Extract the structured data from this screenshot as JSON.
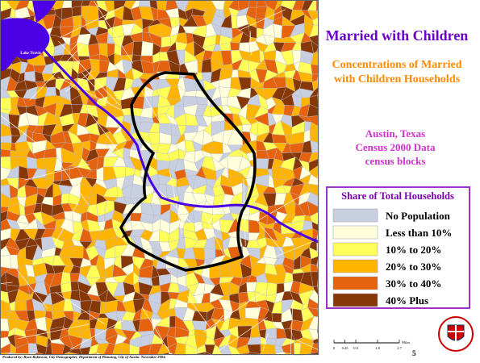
{
  "header": {
    "title": "Married with Children",
    "subtitle": [
      "Concentrations of Married",
      "with Children Households"
    ]
  },
  "place": [
    "Austin, Texas",
    "Census 2000 Data",
    "census blocks"
  ],
  "legend": {
    "title": "Share of Total Households",
    "items": [
      {
        "label": "No Population",
        "color": "#c7cfe0"
      },
      {
        "label": "Less than 10%",
        "color": "#ffffdc"
      },
      {
        "label": "10% to 20%",
        "color": "#ffff5a"
      },
      {
        "label": "20% to 30%",
        "color": "#ffb400"
      },
      {
        "label": "30% to 40%",
        "color": "#e5620e"
      },
      {
        "label": "40% Plus",
        "color": "#873808"
      }
    ]
  },
  "map": {
    "lake_label": "Lake Travis"
  },
  "scale": {
    "ticks": [
      0,
      0.45,
      0.9,
      1.8,
      2.7
    ],
    "unit": "Miles"
  },
  "credit": "Produced by: Ryan Robinson, City Demographer, Department of Planning, City of Austin. November 2004.",
  "page": 5
}
